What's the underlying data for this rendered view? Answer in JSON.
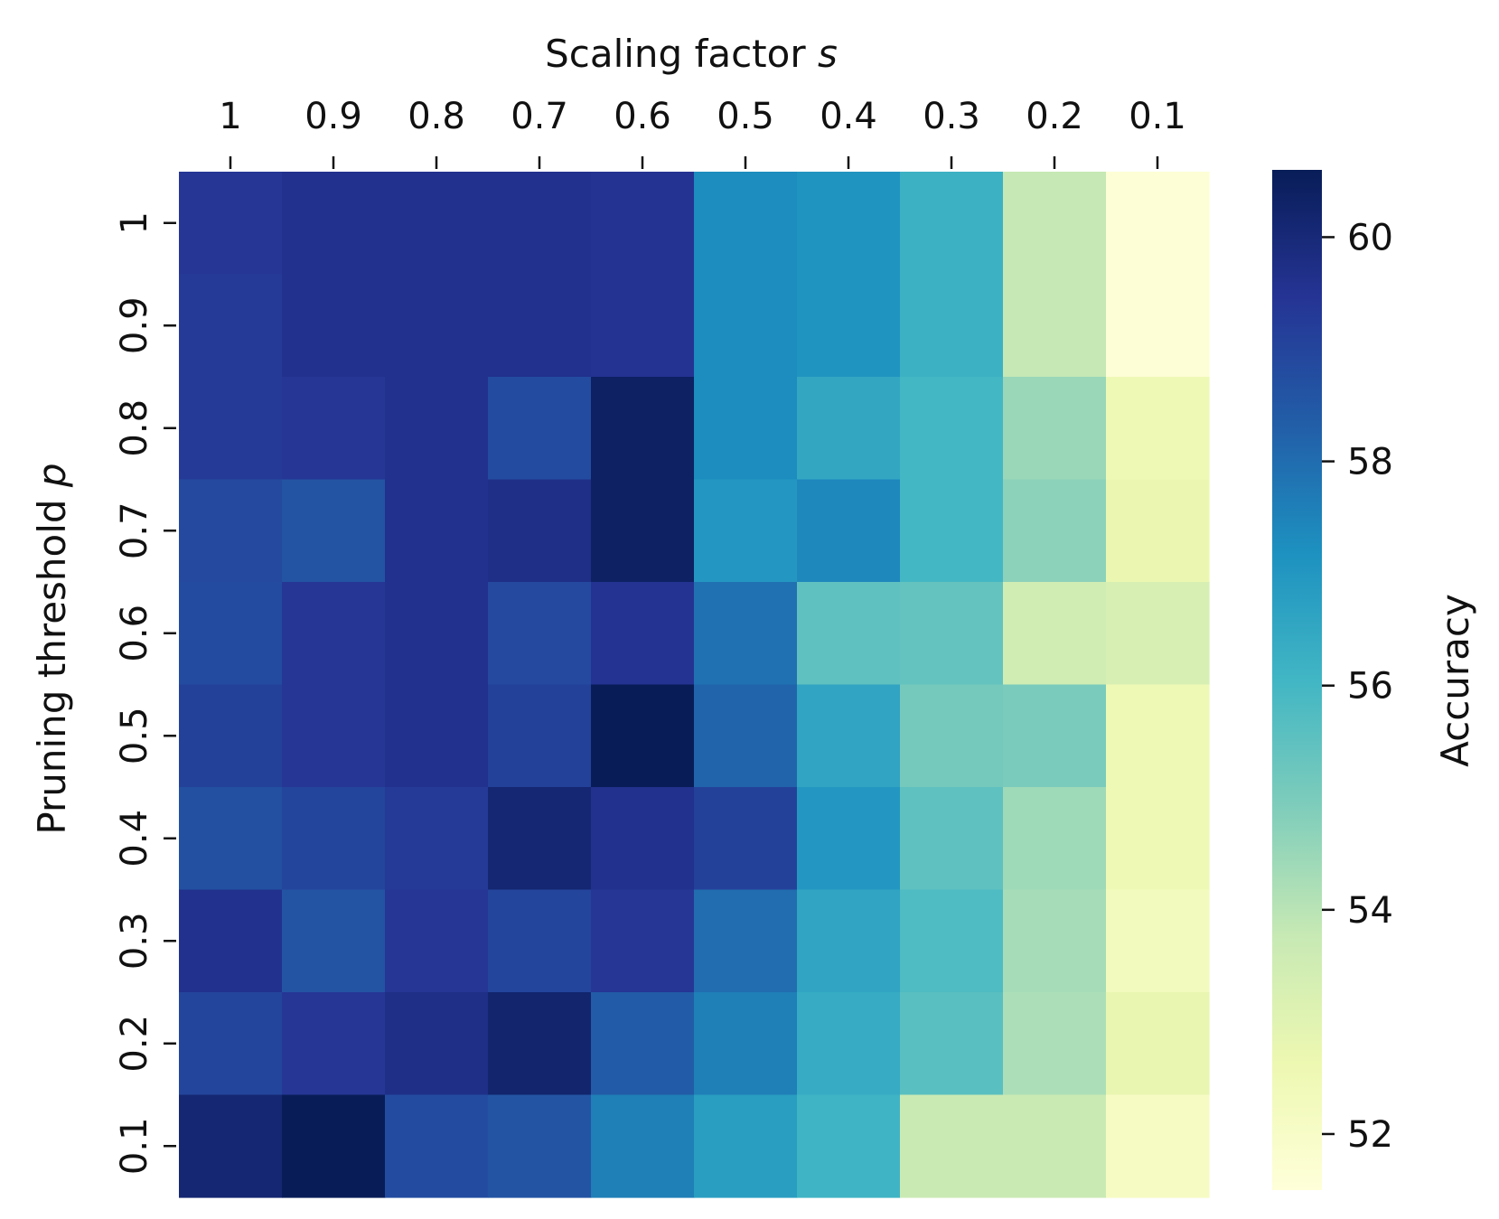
{
  "chart_data": {
    "type": "heatmap",
    "xlabel": "Scaling factor",
    "xlabel_var": "s",
    "ylabel": "Pruning threshold",
    "ylabel_var": "p",
    "x_categories": [
      "1",
      "0.9",
      "0.8",
      "0.7",
      "0.6",
      "0.5",
      "0.4",
      "0.3",
      "0.2",
      "0.1"
    ],
    "y_categories": [
      "1",
      "0.9",
      "0.8",
      "0.7",
      "0.6",
      "0.5",
      "0.4",
      "0.3",
      "0.2",
      "0.1"
    ],
    "values": [
      [
        59.4,
        59.6,
        59.6,
        59.6,
        59.5,
        57.3,
        57.1,
        56.2,
        53.8,
        51.6
      ],
      [
        59.3,
        59.6,
        59.6,
        59.6,
        59.5,
        57.3,
        57.1,
        56.2,
        53.8,
        51.6
      ],
      [
        59.3,
        59.4,
        59.6,
        58.8,
        60.4,
        57.3,
        56.5,
        56.0,
        54.5,
        52.5
      ],
      [
        58.9,
        58.6,
        59.6,
        59.7,
        60.4,
        57.0,
        57.4,
        56.0,
        54.7,
        52.7
      ],
      [
        58.8,
        59.4,
        59.6,
        58.9,
        59.5,
        57.9,
        55.5,
        55.4,
        53.5,
        53.3
      ],
      [
        59.1,
        59.4,
        59.6,
        59.1,
        60.6,
        58.2,
        56.6,
        55.1,
        55.0,
        52.5
      ],
      [
        58.7,
        59.0,
        59.3,
        60.1,
        59.6,
        59.1,
        57.0,
        55.5,
        54.4,
        52.5
      ],
      [
        59.6,
        58.6,
        59.4,
        59.0,
        59.4,
        58.0,
        56.6,
        55.8,
        54.3,
        52.3
      ],
      [
        59.0,
        59.4,
        59.7,
        60.2,
        58.4,
        57.6,
        56.4,
        55.6,
        54.2,
        52.8
      ],
      [
        60.1,
        60.6,
        58.8,
        58.6,
        57.6,
        56.8,
        56.1,
        53.7,
        53.7,
        52.1
      ]
    ],
    "colorbar": {
      "label": "Accuracy",
      "vmin": 51.5,
      "vmax": 60.6,
      "ticks": [
        60,
        58,
        56,
        54,
        52
      ],
      "tick_labels": [
        "60",
        "58",
        "56",
        "54",
        "52"
      ],
      "colormap": "YlGnBu"
    },
    "colormap_stops": [
      "#ffffd9",
      "#edf8b1",
      "#c7e9b4",
      "#7fcdbb",
      "#41b6c4",
      "#1d91c0",
      "#225ea8",
      "#253494",
      "#081d58"
    ]
  }
}
